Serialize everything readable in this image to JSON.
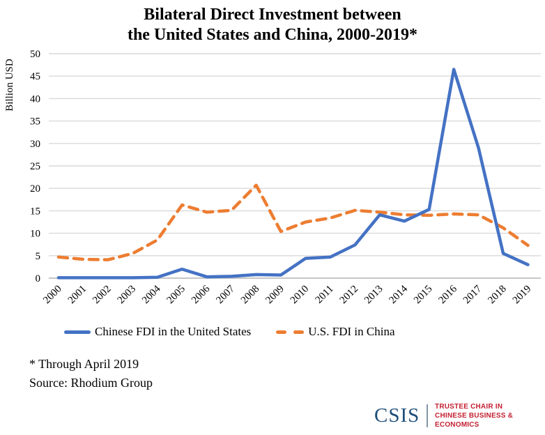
{
  "title": {
    "line1": "Bilateral Direct Investment between",
    "line2": "the United States and China, 2000-2019*"
  },
  "legend": {
    "series1": "Chinese FDI in the United States",
    "series2": "U.S. FDI in China"
  },
  "notes": {
    "line1": "* Through April 2019",
    "line2": "Source: Rhodium Group"
  },
  "logo": {
    "acronym": "CSIS",
    "line1": "TRUSTEE CHAIR IN",
    "line2": "CHINESE BUSINESS & ECONOMICS"
  },
  "colors": {
    "blue": "#4472C4",
    "orange": "#ED7D31",
    "grid": "#D9D9D9",
    "axis": "#C6C6C6",
    "csis_navy": "#1F4E79",
    "csis_red": "#C32032",
    "divider_gray": "#8496AC"
  },
  "chart_data": {
    "type": "line",
    "title": "Bilateral Direct Investment between the United States and China, 2000-2019*",
    "xlabel": "",
    "ylabel": "Billion USD",
    "ylim": [
      0,
      50
    ],
    "y_tick_step": 5,
    "grid": true,
    "legend_position": "bottom",
    "x": [
      2000,
      2001,
      2002,
      2003,
      2004,
      2005,
      2006,
      2007,
      2008,
      2009,
      2010,
      2011,
      2012,
      2013,
      2014,
      2015,
      2016,
      2017,
      2018,
      2019
    ],
    "series": [
      {
        "name": "Chinese FDI in the United States",
        "color": "#4472C4",
        "style": "solid",
        "values": [
          0.1,
          0.1,
          0.1,
          0.1,
          0.2,
          2.0,
          0.3,
          0.4,
          0.8,
          0.7,
          4.4,
          4.7,
          7.4,
          14.1,
          12.7,
          15.3,
          46.5,
          29.0,
          5.5,
          3.0
        ]
      },
      {
        "name": "U.S. FDI in China",
        "color": "#ED7D31",
        "style": "dashed",
        "values": [
          4.7,
          4.2,
          4.1,
          5.5,
          8.5,
          16.3,
          14.7,
          15.1,
          20.7,
          10.4,
          12.5,
          13.4,
          15.1,
          14.7,
          14.1,
          14.0,
          14.3,
          14.1,
          11.2,
          7.3
        ]
      }
    ]
  }
}
